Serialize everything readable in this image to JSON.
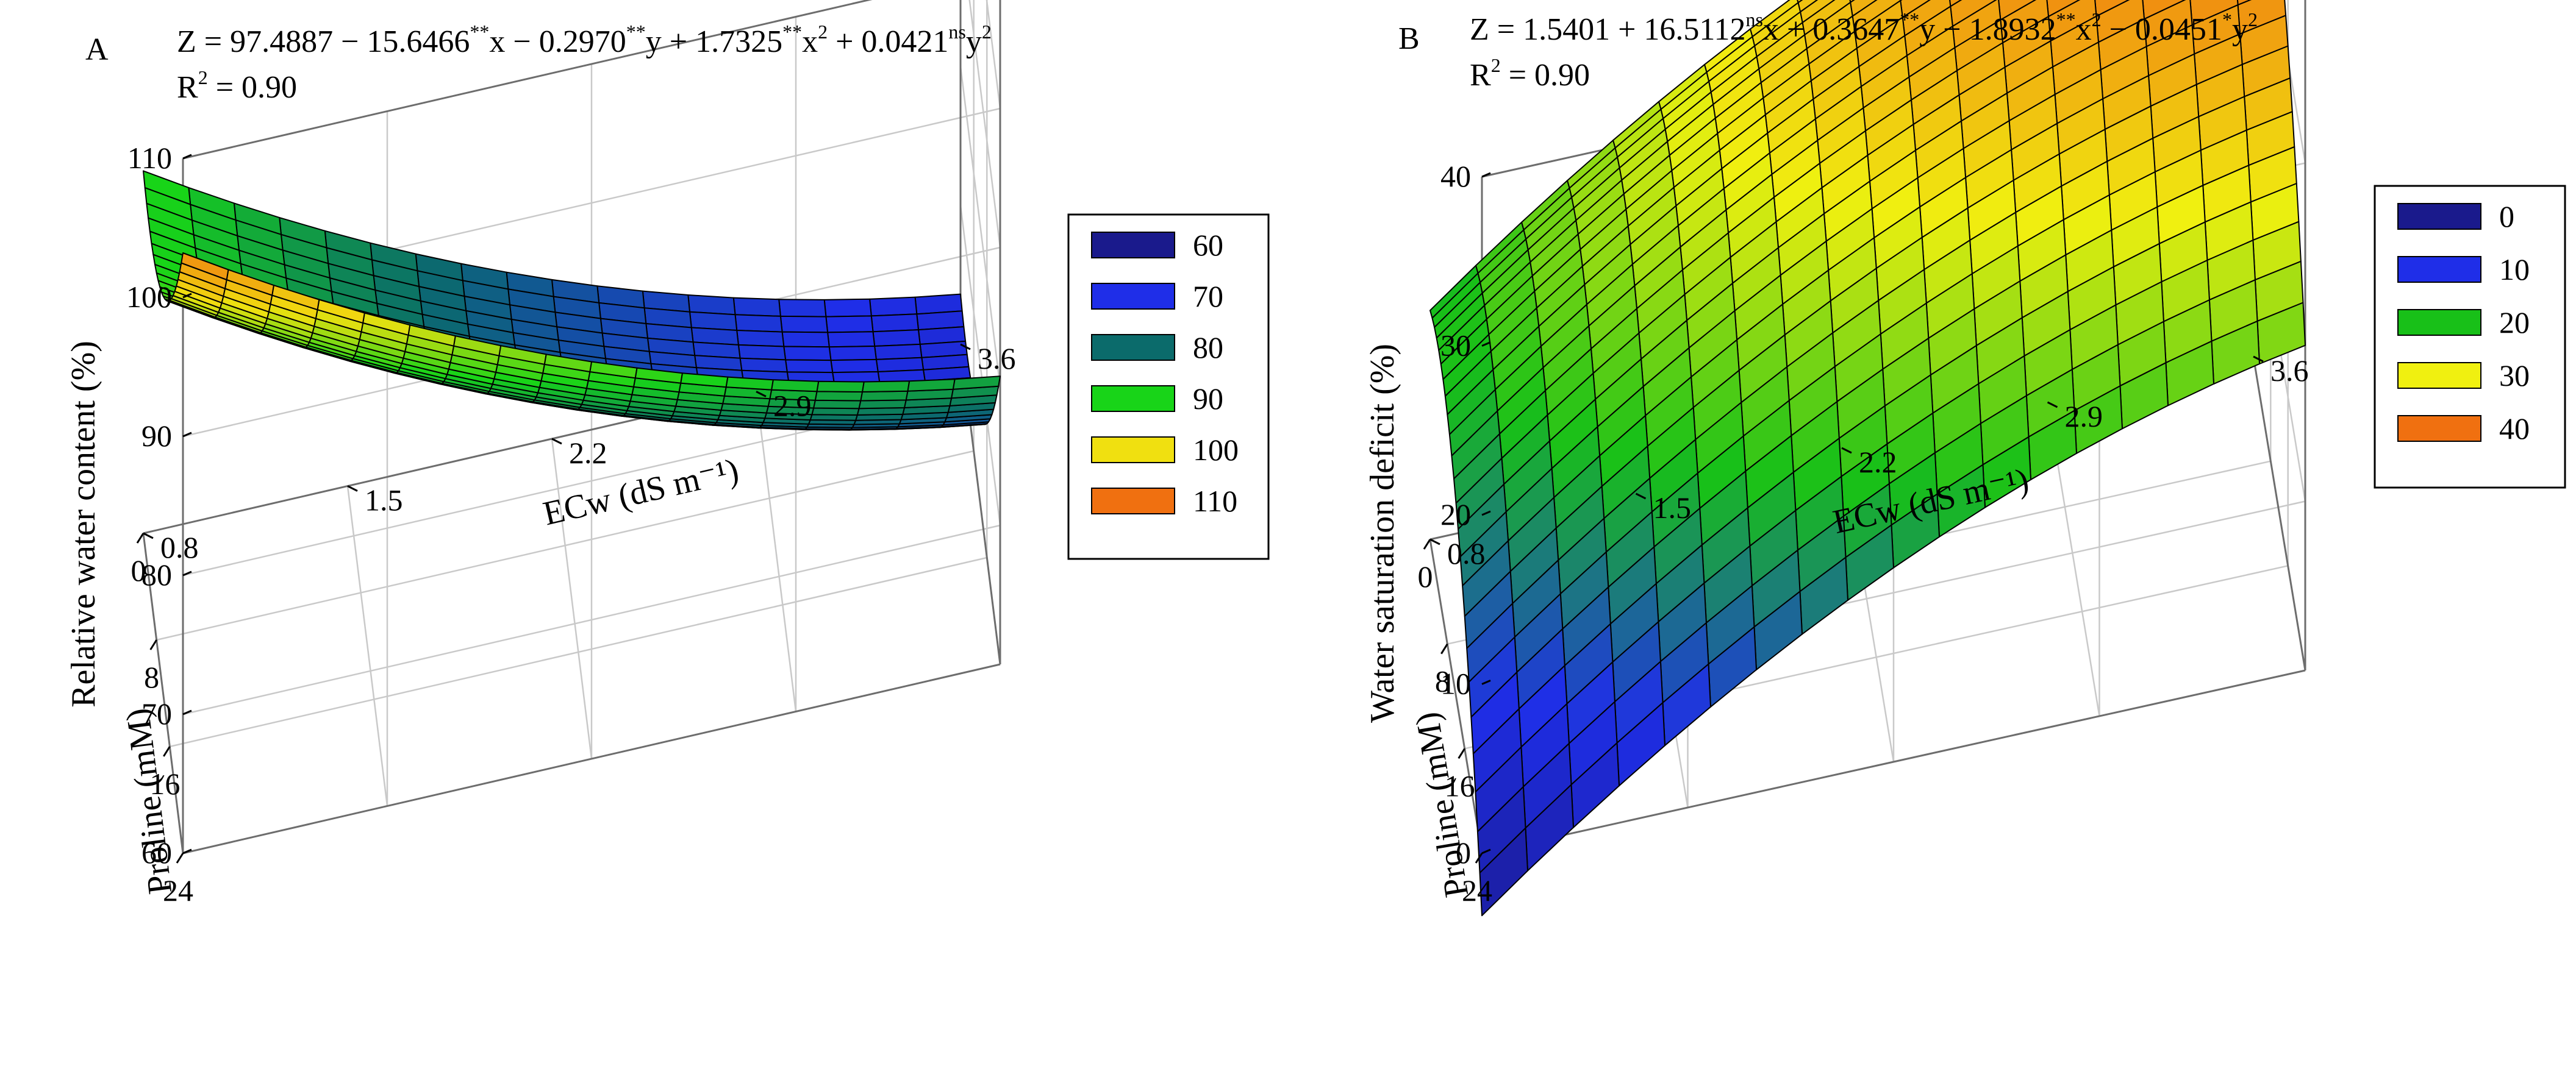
{
  "chart_data": [
    {
      "type": "surface3d",
      "panel": "A",
      "equation": {
        "parts": [
          {
            "t": "Z = 97.4887 − 15.6466"
          },
          {
            "s": "**"
          },
          {
            "t": "x − 0.2970"
          },
          {
            "s": "**"
          },
          {
            "t": "y + 1.7325"
          },
          {
            "s": "**"
          },
          {
            "t": "x"
          },
          {
            "s": "2"
          },
          {
            "t": " + 0.0421"
          },
          {
            "s": "ns"
          },
          {
            "t": "y"
          },
          {
            "s": "2"
          }
        ],
        "coefficients": {
          "c0": 97.4887,
          "x": -15.6466,
          "y": -0.297,
          "x2": 1.7325,
          "y2": 0.0421
        }
      },
      "r2": {
        "prefix": "R",
        "sup": "2",
        "value": " = 0.90"
      },
      "zlabel": "Relative water content (%)",
      "xlabel": "ECw (dS m⁻¹)",
      "ylabel": "Proline (mM)",
      "xlim": [
        0.8,
        3.6
      ],
      "ylim": [
        0,
        24
      ],
      "zlim": [
        60,
        110
      ],
      "x_ticks": [
        "0.8",
        "1.5",
        "2.2",
        "2.9",
        "3.6"
      ],
      "y_ticks": [
        "0",
        "8",
        "16",
        "24"
      ],
      "z_ticks": [
        "60",
        "70",
        "80",
        "90",
        "100",
        "110"
      ],
      "legend": [
        {
          "label": "60",
          "color": "#1a1a8c"
        },
        {
          "label": "70",
          "color": "#1f2ee8"
        },
        {
          "label": "80",
          "color": "#0b6b6b"
        },
        {
          "label": "90",
          "color": "#18d418"
        },
        {
          "label": "100",
          "color": "#f0e010"
        },
        {
          "label": "110",
          "color": "#f07010"
        }
      ]
    },
    {
      "type": "surface3d",
      "panel": "B",
      "equation": {
        "parts": [
          {
            "t": "Z = 1.5401 + 16.5112"
          },
          {
            "s": "ns"
          },
          {
            "t": "x + 0.3647"
          },
          {
            "s": "**"
          },
          {
            "t": "y  − 1.8932"
          },
          {
            "s": "**"
          },
          {
            "t": "x"
          },
          {
            "s": "2"
          },
          {
            "t": " − 0.0451"
          },
          {
            "s": "*"
          },
          {
            "t": "y"
          },
          {
            "s": "2"
          }
        ],
        "coefficients": {
          "c0": 1.5401,
          "x": 16.5112,
          "y": 0.3647,
          "x2": -1.8932,
          "y2": -0.0451
        }
      },
      "r2": {
        "prefix": "R",
        "sup": "2",
        "value": " = 0.90"
      },
      "zlabel": "Water saturation deficit (%)",
      "xlabel": "ECw (dS m⁻¹)",
      "ylabel": "Proline (mM)",
      "xlim": [
        0.8,
        3.6
      ],
      "ylim": [
        0,
        24
      ],
      "zlim": [
        0,
        40
      ],
      "x_ticks": [
        "0.8",
        "1.5",
        "2.2",
        "2.9",
        "3.6"
      ],
      "y_ticks": [
        "0",
        "8",
        "16",
        "24"
      ],
      "z_ticks": [
        "0",
        "10",
        "20",
        "30",
        "40"
      ],
      "legend": [
        {
          "label": "0",
          "color": "#1a1a8c"
        },
        {
          "label": "10",
          "color": "#1f2ee8"
        },
        {
          "label": "20",
          "color": "#18c018"
        },
        {
          "label": "30",
          "color": "#f0f010"
        },
        {
          "label": "40",
          "color": "#f07010"
        }
      ]
    }
  ]
}
